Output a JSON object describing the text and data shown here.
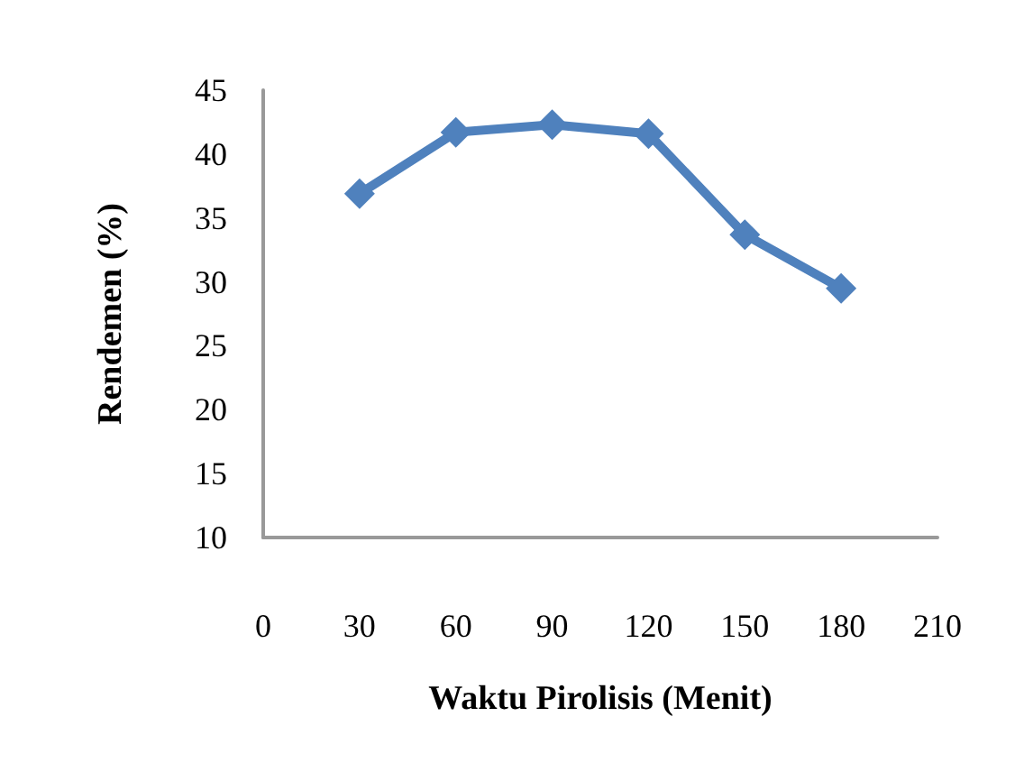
{
  "chart_data": {
    "type": "line",
    "xlabel": "Waktu Pirolisis (Menit)",
    "ylabel": "Rendemen (%)",
    "x": [
      30,
      60,
      90,
      120,
      150,
      180
    ],
    "series": [
      {
        "color": "#4f81bd",
        "values": [
          36.9,
          41.7,
          42.3,
          41.6,
          33.7,
          29.5
        ]
      }
    ],
    "xlim": [
      0,
      210
    ],
    "xticks": [
      0,
      30,
      60,
      90,
      120,
      150,
      180,
      210
    ],
    "ylim": [
      10,
      45
    ],
    "yticks": [
      10,
      15,
      20,
      25,
      30,
      35,
      40,
      45
    ],
    "grid": false,
    "marker": "diamond",
    "line_style": "solid"
  }
}
